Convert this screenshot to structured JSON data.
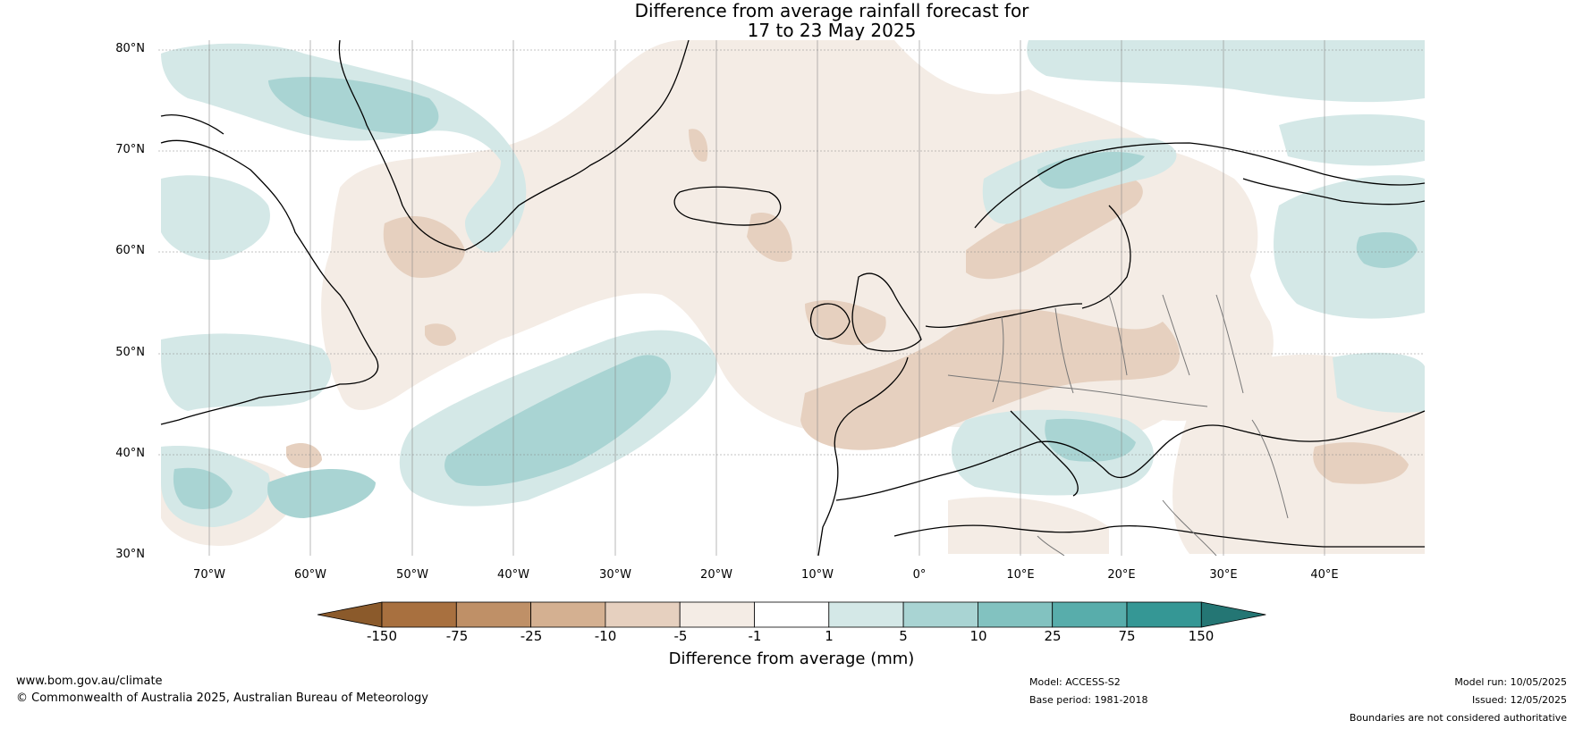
{
  "title_line1": "Difference from average rainfall forecast for",
  "title_line2": "17 to 23 May 2025",
  "lat_labels": [
    "80°N",
    "70°N",
    "60°N",
    "50°N",
    "40°N",
    "30°N"
  ],
  "lon_labels": [
    "70°W",
    "60°W",
    "50°W",
    "40°W",
    "30°W",
    "20°W",
    "10°W",
    "0°",
    "10°E",
    "20°E",
    "30°E",
    "40°E"
  ],
  "colorbar": {
    "title": "Difference from average (mm)",
    "ticks": [
      "-150",
      "-75",
      "-25",
      "-10",
      "-5",
      "-1",
      "1",
      "5",
      "10",
      "25",
      "75",
      "150"
    ],
    "colors": [
      "#8b5a2b",
      "#a8703f",
      "#bf9067",
      "#d4b091",
      "#e6d0bf",
      "#f4ece5",
      "#ffffff",
      "#d4e8e7",
      "#a9d4d3",
      "#82c2c0",
      "#58adab",
      "#359795",
      "#247674"
    ]
  },
  "footer": {
    "website": "www.bom.gov.au/climate",
    "copyright": "© Commonwealth of Australia 2025, Australian Bureau of Meteorology",
    "model": "Model: ACCESS-S2",
    "base_period": "Base period: 1981-2018",
    "model_run": "Model run: 10/05/2025",
    "issued": "Issued: 12/05/2025",
    "disclaimer": "Boundaries are not considered authoritative"
  }
}
